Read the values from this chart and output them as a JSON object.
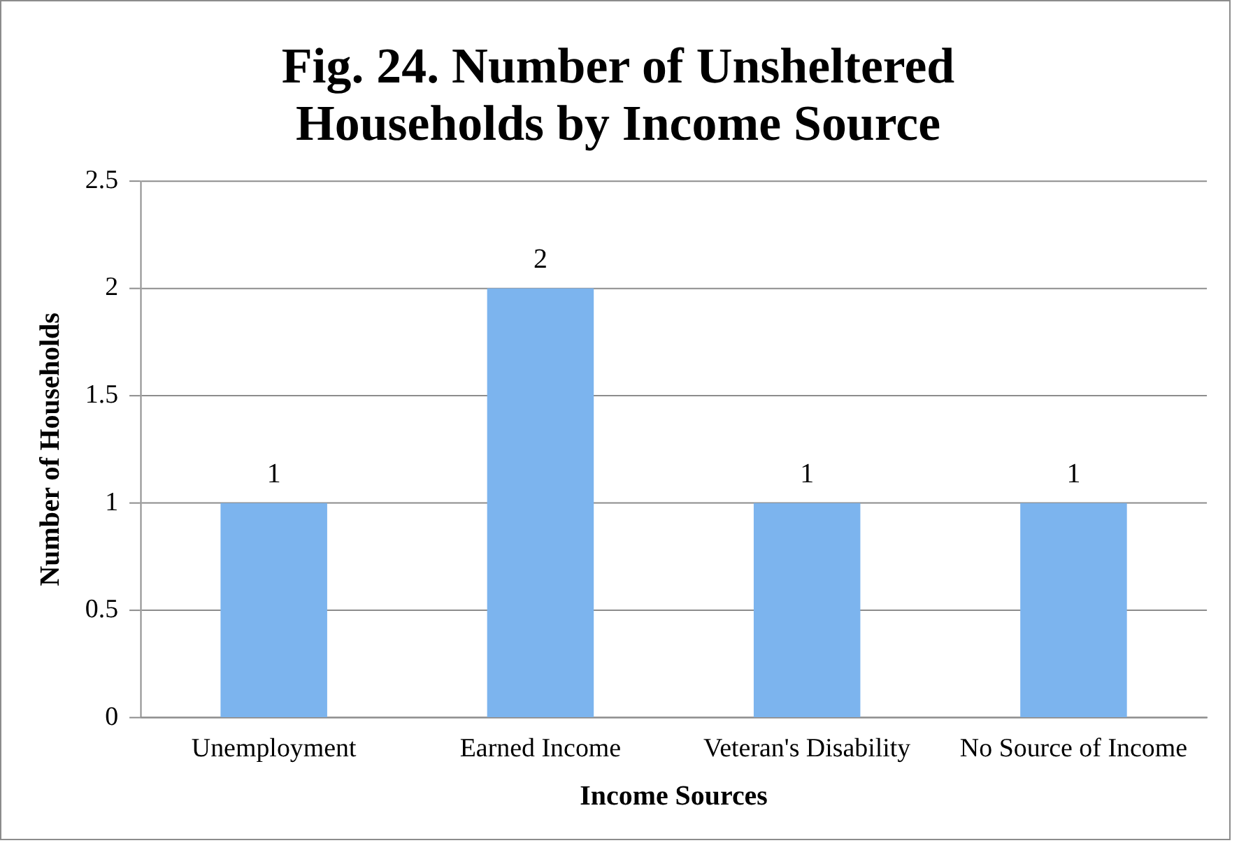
{
  "chart_data": {
    "type": "bar",
    "title": "Fig. 24. Number of Unsheltered Households by Income Source",
    "xlabel": "Income Sources",
    "ylabel": "Number of Households",
    "categories": [
      "Unemployment",
      "Earned Income",
      "Veteran's Disability",
      "No Source of Income"
    ],
    "values": [
      1,
      2,
      1,
      1
    ],
    "color": "#7cb4ee",
    "ylim": [
      0,
      2.5
    ],
    "yticks": [
      0,
      0.5,
      1,
      1.5,
      2,
      2.5
    ],
    "grid": "y",
    "legend": false,
    "data_labels": true
  }
}
